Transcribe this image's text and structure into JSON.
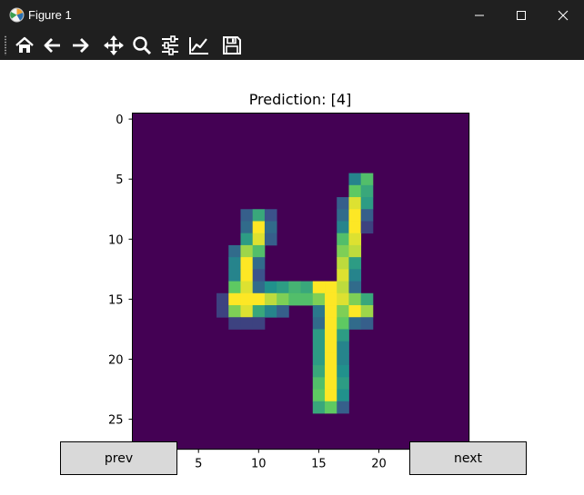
{
  "window": {
    "title": "Figure 1",
    "controls": {
      "minimize": "minimize-icon",
      "maximize": "maximize-icon",
      "close": "close-icon"
    }
  },
  "toolbar": {
    "buttons": [
      "home-icon",
      "back-arrow-icon",
      "forward-arrow-icon",
      "pan-move-icon",
      "zoom-magnifier-icon",
      "configure-subplots-icon",
      "edit-axis-icon",
      "save-floppy-icon"
    ]
  },
  "buttons": {
    "prev": "prev",
    "next": "next"
  },
  "chart_data": {
    "type": "heatmap",
    "title": "Prediction: [4]",
    "colormap": "viridis",
    "value_range": [
      0,
      1
    ],
    "image_shape": [
      28,
      28
    ],
    "x_ticks": [
      5,
      10,
      15,
      20
    ],
    "y_ticks": [
      0,
      5,
      10,
      15,
      20,
      25
    ],
    "pixels": [
      [
        5,
        18,
        0.45
      ],
      [
        5,
        19,
        0.7
      ],
      [
        6,
        18,
        0.75
      ],
      [
        6,
        19,
        0.6
      ],
      [
        7,
        17,
        0.3
      ],
      [
        7,
        18,
        0.95
      ],
      [
        7,
        19,
        0.55
      ],
      [
        8,
        9,
        0.3
      ],
      [
        8,
        10,
        0.6
      ],
      [
        8,
        11,
        0.25
      ],
      [
        8,
        17,
        0.35
      ],
      [
        8,
        18,
        1.0
      ],
      [
        8,
        19,
        0.3
      ],
      [
        9,
        9,
        0.35
      ],
      [
        9,
        10,
        1.0
      ],
      [
        9,
        11,
        0.35
      ],
      [
        9,
        17,
        0.45
      ],
      [
        9,
        18,
        1.0
      ],
      [
        9,
        19,
        0.2
      ],
      [
        10,
        9,
        0.55
      ],
      [
        10,
        10,
        0.95
      ],
      [
        10,
        11,
        0.3
      ],
      [
        10,
        17,
        0.7
      ],
      [
        10,
        18,
        0.95
      ],
      [
        11,
        8,
        0.35
      ],
      [
        11,
        9,
        0.85
      ],
      [
        11,
        10,
        0.7
      ],
      [
        11,
        17,
        0.8
      ],
      [
        11,
        18,
        0.9
      ],
      [
        12,
        8,
        0.45
      ],
      [
        12,
        9,
        1.0
      ],
      [
        12,
        10,
        0.35
      ],
      [
        12,
        17,
        0.9
      ],
      [
        12,
        18,
        0.55
      ],
      [
        13,
        8,
        0.45
      ],
      [
        13,
        9,
        1.0
      ],
      [
        13,
        10,
        0.25
      ],
      [
        13,
        17,
        0.95
      ],
      [
        13,
        18,
        0.45
      ],
      [
        14,
        8,
        0.75
      ],
      [
        14,
        9,
        0.95
      ],
      [
        14,
        10,
        0.35
      ],
      [
        14,
        11,
        0.5
      ],
      [
        14,
        12,
        0.55
      ],
      [
        14,
        13,
        0.65
      ],
      [
        14,
        14,
        0.6
      ],
      [
        14,
        15,
        1.0
      ],
      [
        14,
        16,
        1.0
      ],
      [
        14,
        17,
        0.9
      ],
      [
        14,
        18,
        0.35
      ],
      [
        15,
        7,
        0.2
      ],
      [
        15,
        8,
        1.0
      ],
      [
        15,
        9,
        1.0
      ],
      [
        15,
        10,
        1.0
      ],
      [
        15,
        11,
        0.9
      ],
      [
        15,
        12,
        0.8
      ],
      [
        15,
        13,
        0.7
      ],
      [
        15,
        14,
        0.7
      ],
      [
        15,
        15,
        0.8
      ],
      [
        15,
        16,
        1.0
      ],
      [
        15,
        17,
        0.95
      ],
      [
        15,
        18,
        0.8
      ],
      [
        15,
        19,
        0.6
      ],
      [
        16,
        7,
        0.2
      ],
      [
        16,
        8,
        0.8
      ],
      [
        16,
        9,
        0.95
      ],
      [
        16,
        10,
        0.6
      ],
      [
        16,
        11,
        0.45
      ],
      [
        16,
        12,
        0.3
      ],
      [
        16,
        15,
        0.4
      ],
      [
        16,
        16,
        1.0
      ],
      [
        16,
        17,
        0.8
      ],
      [
        16,
        18,
        1.0
      ],
      [
        16,
        19,
        0.85
      ],
      [
        17,
        8,
        0.2
      ],
      [
        17,
        9,
        0.2
      ],
      [
        17,
        10,
        0.2
      ],
      [
        17,
        15,
        0.35
      ],
      [
        17,
        16,
        1.0
      ],
      [
        17,
        17,
        0.75
      ],
      [
        17,
        18,
        0.35
      ],
      [
        17,
        19,
        0.3
      ],
      [
        18,
        15,
        0.55
      ],
      [
        18,
        16,
        1.0
      ],
      [
        18,
        17,
        0.55
      ],
      [
        19,
        15,
        0.55
      ],
      [
        19,
        16,
        1.0
      ],
      [
        19,
        17,
        0.45
      ],
      [
        20,
        15,
        0.55
      ],
      [
        20,
        16,
        1.0
      ],
      [
        20,
        17,
        0.45
      ],
      [
        21,
        15,
        0.6
      ],
      [
        21,
        16,
        1.0
      ],
      [
        21,
        17,
        0.5
      ],
      [
        22,
        15,
        0.7
      ],
      [
        22,
        16,
        1.0
      ],
      [
        22,
        17,
        0.55
      ],
      [
        23,
        15,
        0.75
      ],
      [
        23,
        16,
        1.0
      ],
      [
        23,
        17,
        0.5
      ],
      [
        24,
        15,
        0.6
      ],
      [
        24,
        16,
        0.75
      ],
      [
        24,
        17,
        0.3
      ]
    ]
  }
}
